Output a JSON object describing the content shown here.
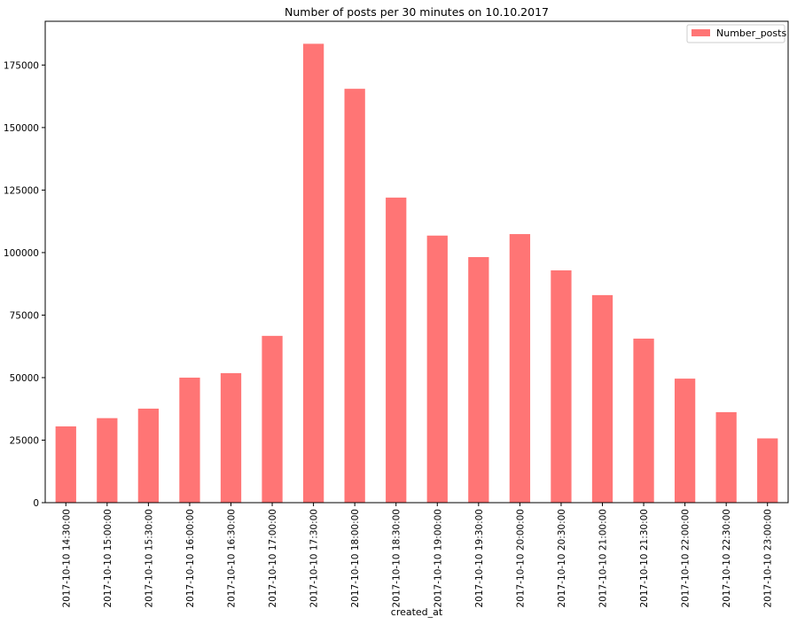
{
  "chart_data": {
    "type": "bar",
    "title": "Number of posts per 30 minutes on 10.10.2017",
    "xlabel": "created_at",
    "ylabel": "",
    "categories": [
      "2017-10-10 14:30:00",
      "2017-10-10 15:00:00",
      "2017-10-10 15:30:00",
      "2017-10-10 16:00:00",
      "2017-10-10 16:30:00",
      "2017-10-10 17:00:00",
      "2017-10-10 17:30:00",
      "2017-10-10 18:00:00",
      "2017-10-10 18:30:00",
      "2017-10-10 19:00:00",
      "2017-10-10 19:30:00",
      "2017-10-10 20:00:00",
      "2017-10-10 20:30:00",
      "2017-10-10 21:00:00",
      "2017-10-10 21:30:00",
      "2017-10-10 22:00:00",
      "2017-10-10 22:30:00",
      "2017-10-10 23:00:00"
    ],
    "series": [
      {
        "name": "Number_posts",
        "color": "#ff7575",
        "values": [
          30500,
          33800,
          37600,
          50000,
          51800,
          66700,
          183500,
          165500,
          122000,
          106800,
          98200,
          107400,
          92900,
          83000,
          65600,
          49600,
          36200,
          25700
        ]
      }
    ],
    "ylim": [
      0,
      192500
    ],
    "yticks": [
      0,
      25000,
      50000,
      75000,
      100000,
      125000,
      150000,
      175000
    ],
    "legend": "top-right",
    "grid": false
  }
}
